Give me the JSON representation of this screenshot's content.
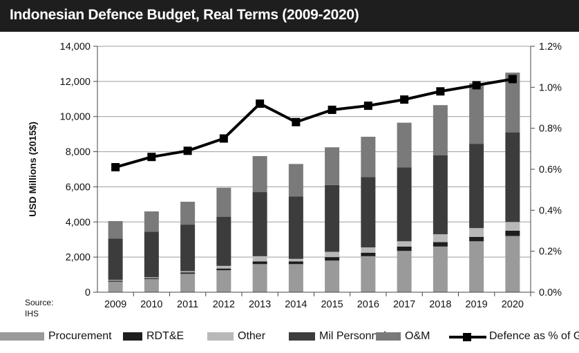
{
  "title": "Indonesian Defence Budget, Real Terms (2009-2020)",
  "source": {
    "line1": "Source:",
    "line2": "IHS"
  },
  "chart_data": {
    "type": "bar",
    "subtype": "stacked bar with line on secondary axis",
    "title": "Indonesian Defence Budget, Real Terms (2009-2020)",
    "xlabel": "",
    "ylabel": "USD Millions (2015$)",
    "y2label": "",
    "categories": [
      "2009",
      "2010",
      "2011",
      "2012",
      "2013",
      "2014",
      "2015",
      "2016",
      "2017",
      "2018",
      "2019",
      "2020"
    ],
    "ylim": [
      0,
      14000
    ],
    "yticks": [
      "0",
      "2,000",
      "4,000",
      "6,000",
      "8,000",
      "10,000",
      "12,000",
      "14,000"
    ],
    "y2lim": [
      0,
      1.2
    ],
    "y2ticks": [
      "0.0%",
      "0.2%",
      "0.4%",
      "0.6%",
      "0.8%",
      "1.0%",
      "1.2%"
    ],
    "grid": "horizontal",
    "legend_position": "bottom",
    "series": [
      {
        "name": "Procurement",
        "type": "bar",
        "axis": "left",
        "color": "#9a9a9a",
        "values": [
          600,
          750,
          1050,
          1250,
          1600,
          1600,
          1800,
          2050,
          2350,
          2600,
          2900,
          3200
        ]
      },
      {
        "name": "RDT&E",
        "type": "bar",
        "axis": "left",
        "color": "#1e1e1e",
        "values": [
          50,
          50,
          80,
          100,
          150,
          150,
          200,
          200,
          250,
          250,
          250,
          300
        ]
      },
      {
        "name": "Other",
        "type": "bar",
        "axis": "left",
        "color": "#b8b8b8",
        "values": [
          50,
          50,
          70,
          150,
          300,
          150,
          300,
          300,
          300,
          450,
          500,
          500
        ]
      },
      {
        "name": "Mil Personnel",
        "type": "bar",
        "axis": "left",
        "color": "#3c3c3c",
        "values": [
          2350,
          2600,
          2650,
          2800,
          3650,
          3550,
          3800,
          4000,
          4200,
          4500,
          4800,
          5100
        ]
      },
      {
        "name": "O&M",
        "type": "bar",
        "axis": "left",
        "color": "#7a7a7a",
        "values": [
          1000,
          1150,
          1300,
          1650,
          2050,
          1850,
          2150,
          2300,
          2550,
          2850,
          3450,
          3400
        ]
      },
      {
        "name": "Defence as % of GDP",
        "type": "line",
        "axis": "right",
        "color": "#000000",
        "values": [
          0.61,
          0.66,
          0.69,
          0.75,
          0.92,
          0.83,
          0.89,
          0.91,
          0.94,
          0.98,
          1.01,
          1.04
        ]
      }
    ]
  },
  "legend": {
    "items": [
      {
        "label": "Procurement",
        "color": "#9a9a9a"
      },
      {
        "label": "RDT&E",
        "color": "#1e1e1e"
      },
      {
        "label": "Other",
        "color": "#b8b8b8"
      },
      {
        "label": "Mil Personnel",
        "color": "#3c3c3c"
      },
      {
        "label": "O&M",
        "color": "#7a7a7a"
      },
      {
        "label": "Defence as % of GDP",
        "color": "#000000"
      }
    ]
  }
}
